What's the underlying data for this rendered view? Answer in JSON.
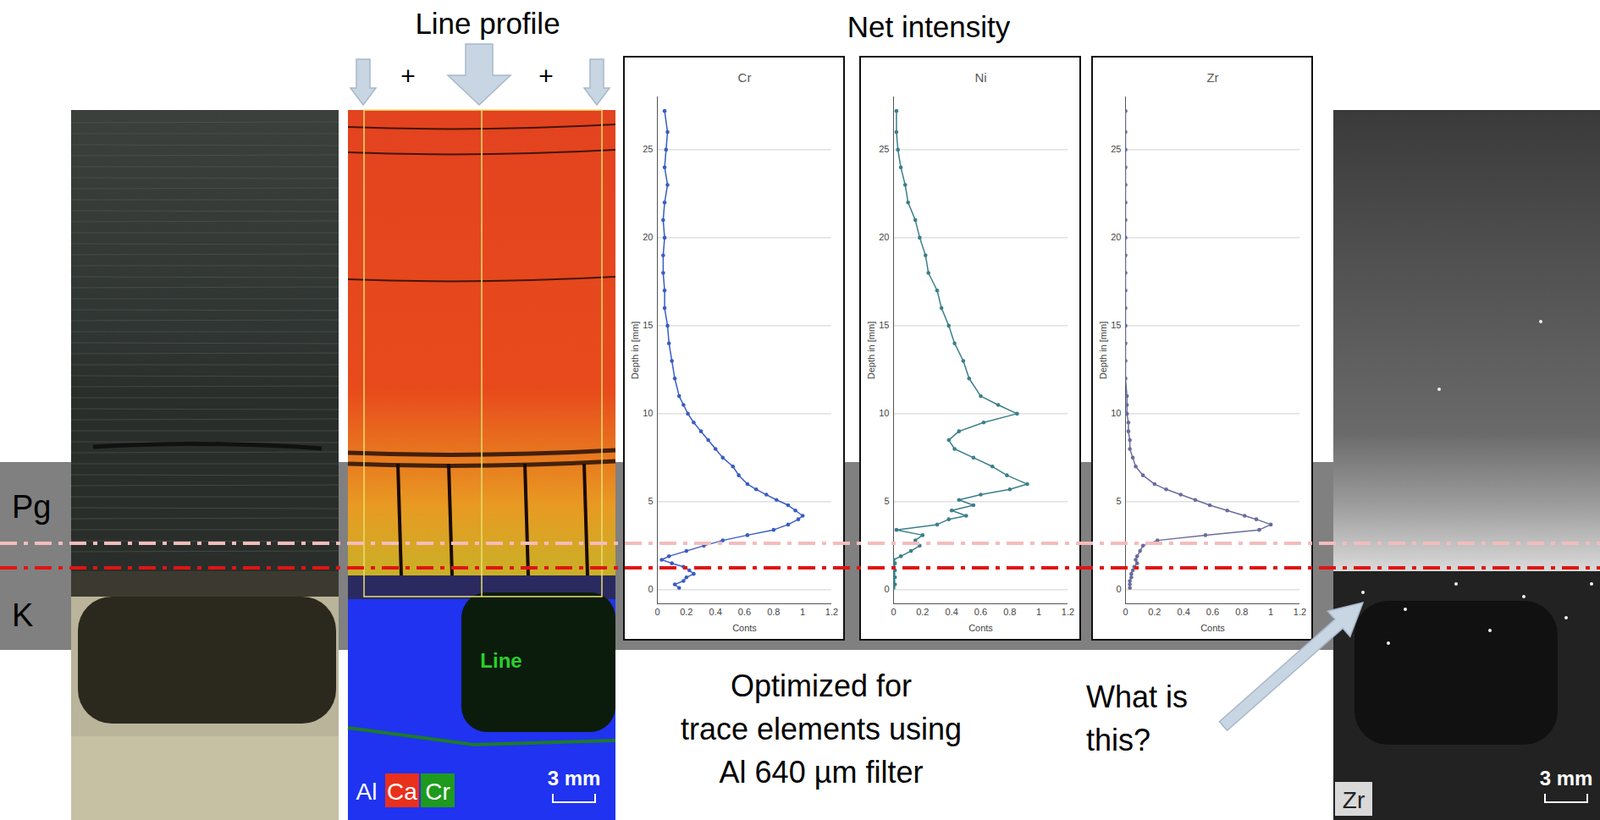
{
  "labels": {
    "line_profile": "Line profile",
    "net_intensity": "Net intensity",
    "plus": "+",
    "pg": "Pg",
    "k": "K",
    "optimized": [
      "Optimized for",
      "trace elements using",
      "Al 640 µm filter"
    ],
    "question": [
      "What is",
      "this?"
    ],
    "map_legend": [
      {
        "name": "Al",
        "color": "#1f33f0"
      },
      {
        "name": "Ca",
        "color": "#e8301c"
      },
      {
        "name": "Cr",
        "color": "#1e9a1e"
      }
    ],
    "map_line": "Line",
    "scale_bar": "3 mm",
    "zr_image": "Zr"
  },
  "chart_data": [
    {
      "type": "line",
      "title": "Cr",
      "x_label": "Conts",
      "y_label": "Depth in [mm]",
      "color": "#3a5cc4",
      "marker": "circle",
      "line_style": "solid",
      "grid": true,
      "xlim": [
        0,
        1.2
      ],
      "xticks": [
        0,
        0.2,
        0.4,
        0.6,
        0.8,
        1,
        1.2
      ],
      "ylim": [
        -0.8,
        28
      ],
      "yticks": [
        0,
        5,
        10,
        15,
        20,
        25
      ],
      "x": [
        0.05,
        0.07,
        0.06,
        0.05,
        0.07,
        0.05,
        0.04,
        0.05,
        0.04,
        0.04,
        0.05,
        0.05,
        0.07,
        0.08,
        0.1,
        0.12,
        0.15,
        0.18,
        0.21,
        0.25,
        0.3,
        0.35,
        0.4,
        0.45,
        0.52,
        0.56,
        0.62,
        0.68,
        0.75,
        0.82,
        0.9,
        0.95,
        1.0,
        0.97,
        0.9,
        0.8,
        0.62,
        0.45,
        0.32,
        0.2,
        0.08,
        0.03,
        0.1,
        0.18,
        0.22,
        0.25,
        0.2,
        0.18,
        0.12,
        0.15
      ],
      "values": [
        27.2,
        26,
        25,
        24,
        23,
        22,
        21,
        20,
        19,
        18,
        17,
        16,
        15,
        14,
        13,
        12,
        11,
        10.5,
        10,
        9.5,
        9,
        8.5,
        8,
        7.5,
        7,
        6.5,
        6,
        5.7,
        5.4,
        5.1,
        4.8,
        4.5,
        4.2,
        4.0,
        3.7,
        3.4,
        3.1,
        2.8,
        2.5,
        2.2,
        1.9,
        1.7,
        1.5,
        1.3,
        1.1,
        0.9,
        0.7,
        0.5,
        0.3,
        0.1
      ]
    },
    {
      "type": "line",
      "title": "Ni",
      "x_label": "Conts",
      "y_label": "Depth in [mm]",
      "color": "#3b7f8a",
      "marker": "circle",
      "line_style": "solid",
      "grid": true,
      "xlim": [
        0,
        1.2
      ],
      "xticks": [
        0,
        0.2,
        0.4,
        0.6,
        0.8,
        1,
        1.2
      ],
      "ylim": [
        -0.8,
        28
      ],
      "yticks": [
        0,
        5,
        10,
        15,
        20,
        25
      ],
      "x": [
        0.02,
        0.02,
        0.03,
        0.05,
        0.08,
        0.1,
        0.15,
        0.18,
        0.22,
        0.24,
        0.3,
        0.33,
        0.38,
        0.42,
        0.48,
        0.52,
        0.6,
        0.72,
        0.85,
        0.62,
        0.45,
        0.38,
        0.42,
        0.55,
        0.68,
        0.78,
        0.92,
        0.8,
        0.6,
        0.45,
        0.55,
        0.4,
        0.5,
        0.38,
        0.3,
        0.02,
        0.2,
        0.15,
        0.18,
        0.12,
        0.05,
        0.0,
        0.01,
        0.0,
        0.01,
        0.0,
        0.01,
        0.0,
        0.01,
        0.0
      ],
      "values": [
        27.2,
        26,
        25,
        24,
        23,
        22,
        21,
        20,
        19,
        18,
        17,
        16,
        15,
        14,
        13,
        12,
        11,
        10.5,
        10,
        9.5,
        9,
        8.5,
        8,
        7.5,
        7,
        6.5,
        6,
        5.7,
        5.4,
        5.1,
        4.8,
        4.5,
        4.2,
        4.0,
        3.7,
        3.4,
        3.1,
        2.8,
        2.5,
        2.2,
        1.9,
        1.7,
        1.5,
        1.3,
        1.1,
        0.9,
        0.7,
        0.5,
        0.3,
        0.1
      ]
    },
    {
      "type": "line",
      "title": "Zr",
      "x_label": "Conts",
      "y_label": "Depth in [mm]",
      "color": "#6a6c9e",
      "marker": "circle",
      "line_style": "solid",
      "grid": true,
      "xlim": [
        0,
        1.2
      ],
      "xticks": [
        0,
        0.2,
        0.4,
        0.6,
        0.8,
        1,
        1.2
      ],
      "ylim": [
        -0.8,
        28
      ],
      "yticks": [
        0,
        5,
        10,
        15,
        20,
        25
      ],
      "x": [
        0,
        0,
        0,
        0,
        0,
        0,
        0,
        0,
        0,
        0,
        0,
        0,
        0,
        0,
        0,
        0,
        0.01,
        0.01,
        0.01,
        0.02,
        0.02,
        0.03,
        0.03,
        0.05,
        0.07,
        0.12,
        0.2,
        0.28,
        0.38,
        0.48,
        0.58,
        0.7,
        0.82,
        0.9,
        1.0,
        0.92,
        0.55,
        0.22,
        0.12,
        0.1,
        0.08,
        0.07,
        0.08,
        0.06,
        0.05,
        0.04,
        0.04,
        0.03,
        0.03,
        0.03
      ],
      "values": [
        27.2,
        26,
        25,
        24,
        23,
        22,
        21,
        20,
        19,
        18,
        17,
        16,
        15,
        14,
        13,
        12,
        11,
        10.5,
        10,
        9.5,
        9,
        8.5,
        8,
        7.5,
        7,
        6.5,
        6,
        5.7,
        5.4,
        5.1,
        4.8,
        4.5,
        4.2,
        4.0,
        3.7,
        3.4,
        3.1,
        2.8,
        2.5,
        2.2,
        1.9,
        1.7,
        1.5,
        1.3,
        1.1,
        0.9,
        0.7,
        0.5,
        0.3,
        0.1
      ]
    }
  ]
}
